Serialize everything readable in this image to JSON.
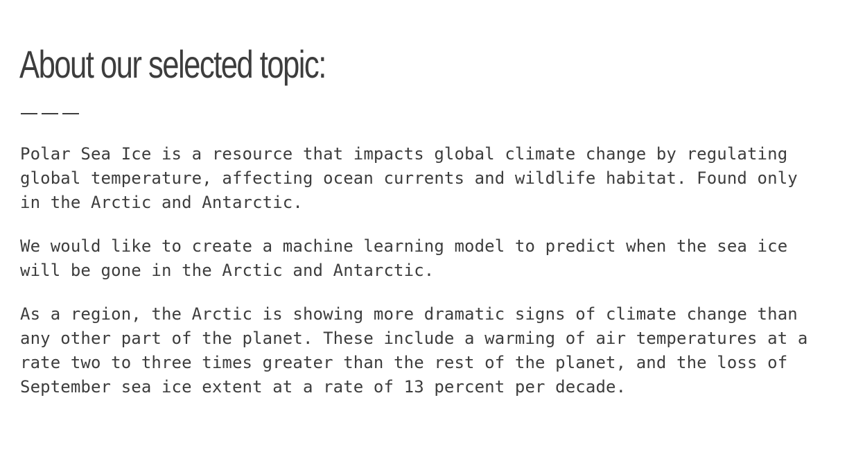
{
  "heading": {
    "title": "About our selected topic:"
  },
  "paragraphs": [
    {
      "text": "Polar Sea Ice is a resource that impacts global climate change by regulating\nglobal temperature, affecting ocean currents and wildlife habitat. Found only\nin the Arctic and Antarctic."
    },
    {
      "text": "We would like to create a machine learning model to predict when the sea ice\nwill be gone in the Arctic and Antarctic."
    },
    {
      "text": "As a region, the Arctic is showing more dramatic signs of climate change than\nany other part of the planet. These include a warming of air temperatures at a\nrate two to three times greater than the rest of the planet, and the loss of\nSeptember sea ice extent at a rate of 13 percent per decade."
    }
  ]
}
